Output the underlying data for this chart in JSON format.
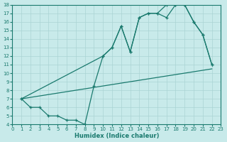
{
  "xlabel": "Humidex (Indice chaleur)",
  "bg_color": "#c8eaea",
  "line_color": "#1a7a6e",
  "grid_color": "#aad4d4",
  "xlim": [
    0,
    23
  ],
  "ylim": [
    4,
    18
  ],
  "xticks": [
    0,
    1,
    2,
    3,
    4,
    5,
    6,
    7,
    8,
    9,
    10,
    11,
    12,
    13,
    14,
    15,
    16,
    17,
    18,
    19,
    20,
    21,
    22,
    23
  ],
  "yticks": [
    4,
    5,
    6,
    7,
    8,
    9,
    10,
    11,
    12,
    13,
    14,
    15,
    16,
    17,
    18
  ],
  "line1_x": [
    1,
    2,
    3,
    4,
    5,
    6,
    7,
    8,
    9,
    10,
    11,
    12,
    13,
    14,
    15,
    16,
    17,
    18,
    19,
    20,
    21,
    22
  ],
  "line1_y": [
    7,
    6,
    6,
    5,
    5,
    4.5,
    4.5,
    4,
    8.5,
    12,
    13,
    15.5,
    12.5,
    16.5,
    17,
    17,
    18,
    18,
    18,
    16,
    14.5,
    11
  ],
  "line2_x": [
    1,
    22
  ],
  "line2_y": [
    7,
    10.5
  ],
  "line3_x": [
    1,
    10,
    11,
    12,
    13,
    14,
    15,
    16,
    17,
    18,
    19,
    20,
    21,
    22
  ],
  "line3_y": [
    7,
    12,
    13,
    15.5,
    12.5,
    16.5,
    17,
    17,
    16.5,
    18,
    18,
    16,
    14.5,
    11
  ]
}
